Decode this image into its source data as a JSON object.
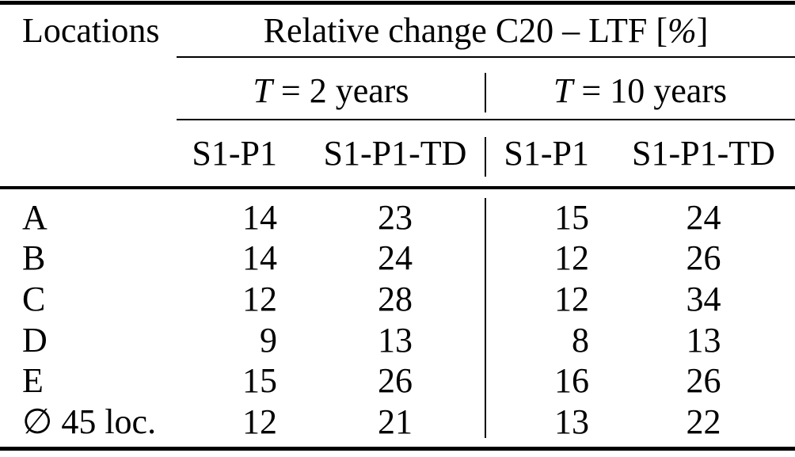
{
  "table": {
    "locations_header": "Locations",
    "span_header_pre": "Relative change C20 – LTF [",
    "span_header_pct": "%",
    "span_header_post": "]",
    "group_t2_var": "T",
    "group_t2_rest": " = 2 years",
    "group_t10_var": "T",
    "group_t10_rest": " = 10 years",
    "subheaders": [
      "S1-P1",
      "S1-P1-TD",
      "S1-P1",
      "S1-P1-TD"
    ],
    "rows": [
      {
        "label": "A",
        "values": [
          "14",
          "23",
          "15",
          "24"
        ]
      },
      {
        "label": "B",
        "values": [
          "14",
          "24",
          "12",
          "26"
        ]
      },
      {
        "label": "C",
        "values": [
          "12",
          "28",
          "12",
          "34"
        ]
      },
      {
        "label": "D",
        "values": [
          "9",
          "13",
          "8",
          "13"
        ]
      },
      {
        "label": "E",
        "values": [
          "15",
          "26",
          "16",
          "26"
        ]
      },
      {
        "label": "∅ 45 loc.",
        "values": [
          "12",
          "21",
          "13",
          "22"
        ]
      }
    ],
    "colors": {
      "text": "#000000",
      "background": "#ffffff",
      "rule": "#000000"
    }
  }
}
